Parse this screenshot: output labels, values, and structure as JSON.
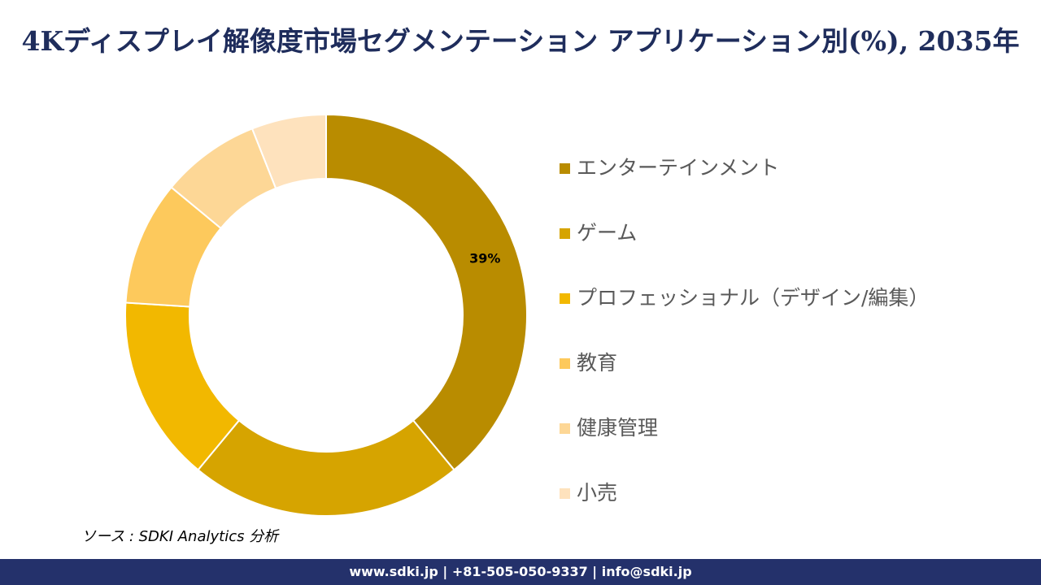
{
  "chart_data": {
    "type": "pie",
    "donut": true,
    "title": "4Kディスプレイ解像度市場セグメンテーション アプリケーション別(%), 2035年",
    "categories": [
      "エンターテインメント",
      "ゲーム",
      "プロフェッショナル（デザイン/編集）",
      "教育",
      "健康管理",
      "小売"
    ],
    "values": [
      39,
      22,
      15,
      10,
      8,
      6
    ],
    "colors": [
      "#B98C00",
      "#D6A400",
      "#F2B800",
      "#FDC95C",
      "#FDD796",
      "#FEE2BD"
    ],
    "data_labels": [
      "39%",
      "",
      "",
      "",
      "",
      ""
    ],
    "legend_position": "right"
  },
  "source": "ソース : SDKI Analytics 分析",
  "footer": "www.sdki.jp | +81-505-050-9337 | info@sdki.jp"
}
